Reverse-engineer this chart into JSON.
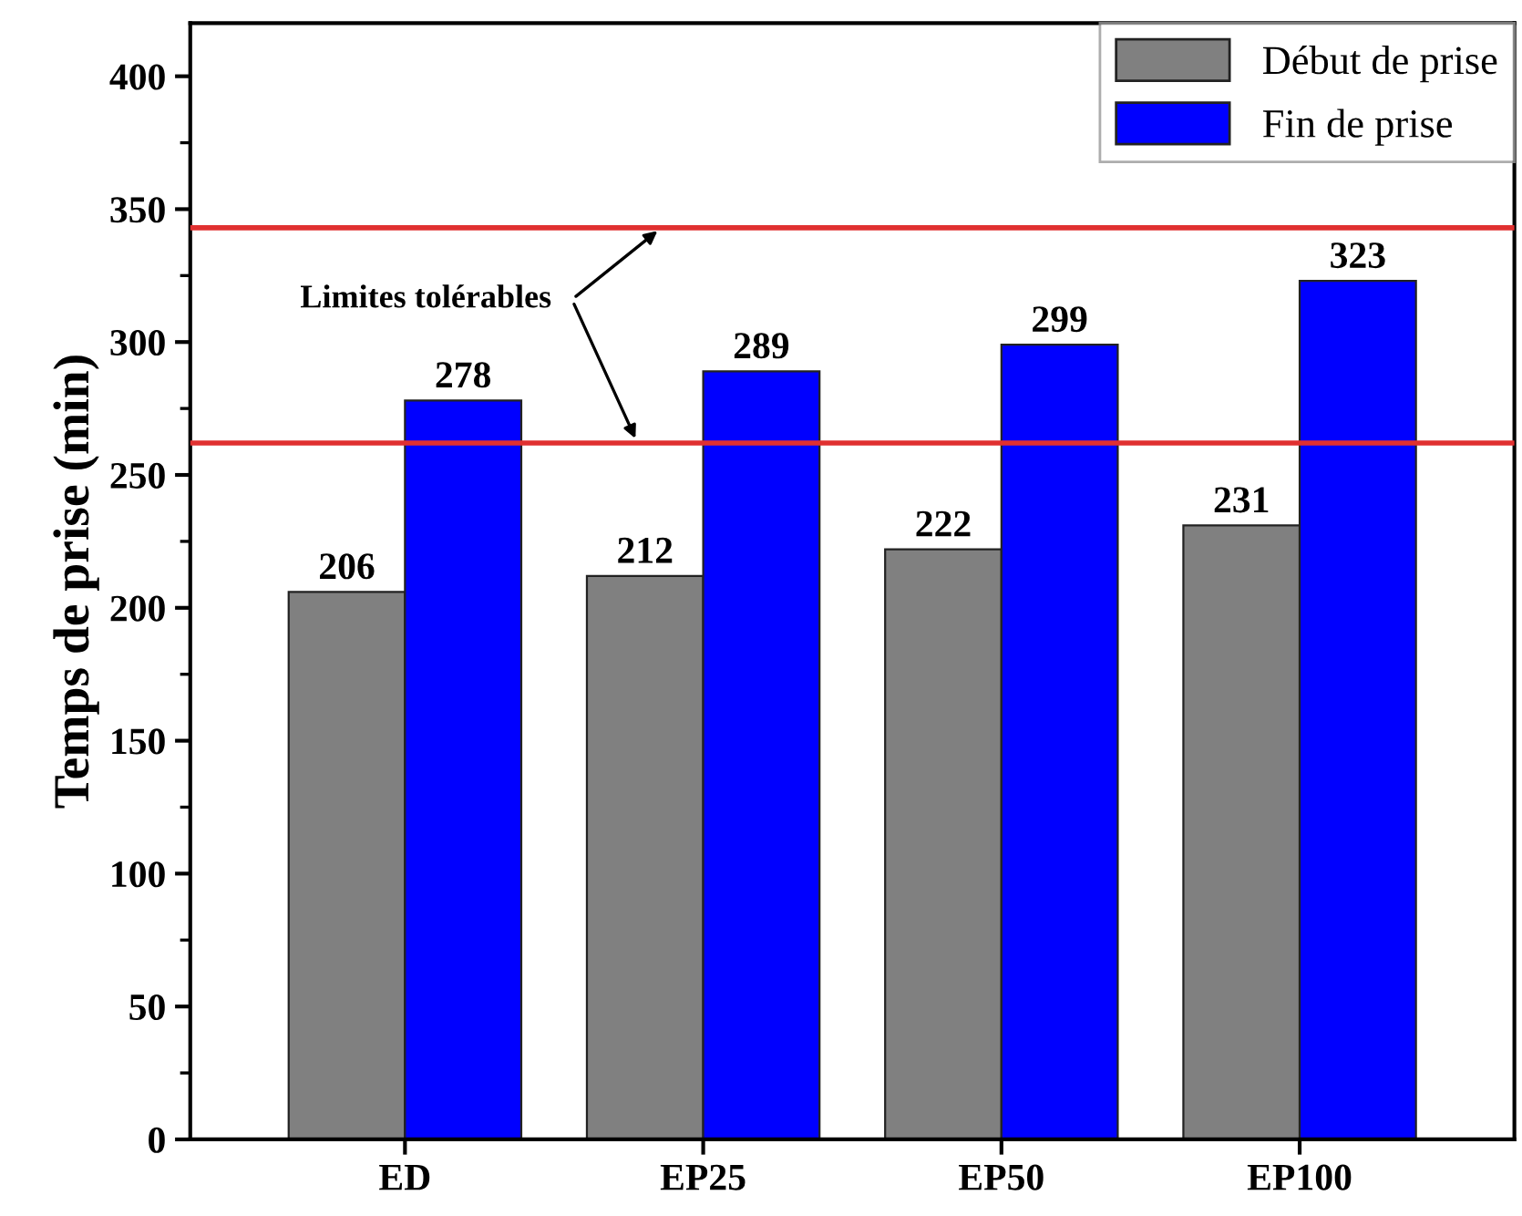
{
  "chart_data": {
    "type": "bar",
    "ylabel": "Temps de prise (min)",
    "categories": [
      "ED",
      "EP25",
      "EP50",
      "EP100"
    ],
    "series": [
      {
        "name": "Début de prise",
        "color": "#808080",
        "values": [
          206,
          212,
          222,
          231
        ]
      },
      {
        "name": "Fin de prise",
        "color": "#0000ff",
        "values": [
          278,
          289,
          299,
          323
        ]
      }
    ],
    "ylim": [
      0,
      420
    ],
    "yticks": [
      0,
      50,
      100,
      150,
      200,
      250,
      300,
      350,
      400
    ],
    "ref_lines": [
      {
        "axis": "y",
        "value": 343,
        "color": "#e03030"
      },
      {
        "axis": "y",
        "value": 262,
        "color": "#e03030"
      }
    ],
    "annotations": [
      {
        "text": "Limites tolérables",
        "y": 343
      }
    ],
    "data_labels": true,
    "legend": "top right",
    "grid": false
  }
}
